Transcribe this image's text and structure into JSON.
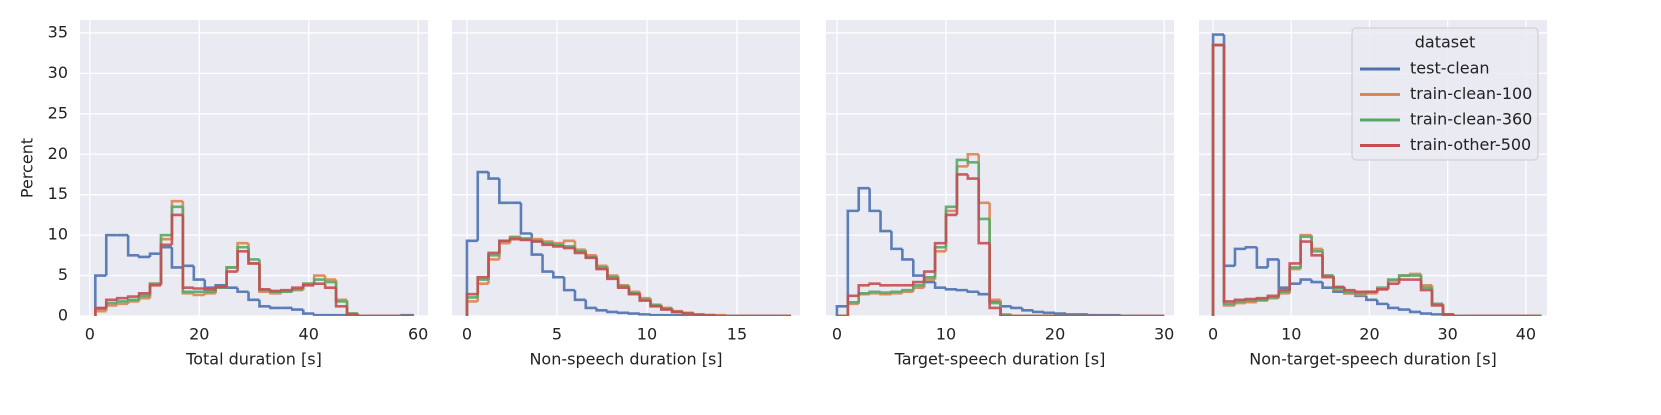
{
  "chart_data": [
    {
      "type": "histogram",
      "xlabel": "Total duration [s]",
      "ylabel": "Percent",
      "bins": [
        1,
        3,
        5,
        7,
        9,
        11,
        13,
        15,
        17,
        19,
        21,
        23,
        25,
        27,
        29,
        31,
        33,
        35,
        37,
        39,
        41,
        43,
        45,
        47,
        49,
        51,
        53,
        55,
        57,
        59
      ],
      "xlim": [
        -1.8,
        61.8
      ],
      "xticks": [
        0,
        20,
        40,
        60
      ],
      "ylim": [
        0,
        36.6
      ],
      "yticks": [
        0,
        5,
        10,
        15,
        20,
        25,
        30,
        35
      ],
      "show_ytick_labels": true,
      "grid": true,
      "series": [
        {
          "color": "#4c72b0",
          "values": [
            5,
            10,
            10,
            7.5,
            7.3,
            7.7,
            8.5,
            6,
            6.2,
            4.5,
            3.5,
            3.8,
            3.5,
            3,
            2,
            1.2,
            1,
            1,
            0.8,
            0.3,
            0.1,
            0.1,
            0.1,
            0,
            0,
            0,
            0,
            0,
            0.1
          ]
        },
        {
          "color": "#dd8452",
          "values": [
            0.6,
            1.3,
            1.5,
            1.8,
            2.2,
            4,
            9.5,
            14.2,
            2.8,
            2.6,
            2.8,
            3.5,
            6,
            9,
            6.5,
            3,
            2.8,
            3,
            3.2,
            4,
            5,
            4.5,
            2,
            0.3,
            0,
            0,
            0,
            0,
            0
          ]
        },
        {
          "color": "#55a868",
          "values": [
            0.9,
            1.6,
            1.8,
            2,
            2.5,
            4,
            10,
            13.5,
            3,
            3,
            3,
            3.5,
            6,
            8.5,
            7,
            3.2,
            3,
            3,
            3.3,
            4,
            4.5,
            4.2,
            1.8,
            0.3,
            0,
            0,
            0,
            0,
            0
          ]
        },
        {
          "color": "#c44e52",
          "values": [
            1,
            2,
            2.2,
            2.4,
            2.8,
            3.8,
            8.8,
            12.5,
            3.5,
            3.4,
            3.3,
            3.6,
            5.5,
            8,
            6.5,
            3.3,
            3.1,
            3.2,
            3.5,
            3.8,
            4,
            3.5,
            1.2,
            0.2,
            0,
            0,
            0,
            0,
            0
          ]
        }
      ]
    },
    {
      "type": "histogram",
      "xlabel": "Non-speech duration [s]",
      "bins": [
        0,
        0.6,
        1.2,
        1.8,
        2.4,
        3,
        3.6,
        4.2,
        4.8,
        5.4,
        6,
        6.6,
        7.2,
        7.8,
        8.4,
        9,
        9.6,
        10.2,
        10.8,
        11.4,
        12,
        12.6,
        13.2,
        13.8,
        14.4,
        15,
        15.6,
        16.2,
        16.8,
        17.4,
        18
      ],
      "xlim": [
        -0.83,
        18.5
      ],
      "xticks": [
        0,
        5,
        10,
        15
      ],
      "ylim": [
        0,
        36.6
      ],
      "yticks": [
        0,
        5,
        10,
        15,
        20,
        25,
        30,
        35
      ],
      "show_ytick_labels": false,
      "grid": true,
      "series": [
        {
          "color": "#4c72b0",
          "values": [
            9.3,
            17.8,
            17,
            14,
            14,
            10.2,
            7.6,
            5.5,
            4.8,
            3.2,
            2,
            1,
            0.7,
            0.5,
            0.4,
            0.3,
            0.2,
            0.1,
            0.1,
            0.1,
            0,
            0,
            0,
            0,
            0,
            0,
            0,
            0,
            0,
            0
          ]
        },
        {
          "color": "#dd8452",
          "values": [
            1.8,
            4,
            7,
            9,
            9.8,
            9.6,
            9.5,
            9.2,
            9,
            9.3,
            8.2,
            7.5,
            6.2,
            5,
            3.8,
            3,
            2.2,
            1.4,
            1,
            0.6,
            0.4,
            0.2,
            0.1,
            0.1,
            0,
            0,
            0,
            0,
            0,
            0
          ]
        },
        {
          "color": "#55a868",
          "values": [
            2.3,
            4.5,
            7.5,
            9.3,
            9.7,
            9.5,
            9.3,
            9,
            8.8,
            8.6,
            8,
            7.3,
            6,
            4.8,
            3.7,
            2.8,
            2,
            1.3,
            0.9,
            0.5,
            0.3,
            0.2,
            0.1,
            0,
            0,
            0,
            0,
            0,
            0,
            0
          ]
        },
        {
          "color": "#c44e52",
          "values": [
            2.7,
            4.8,
            7.8,
            9.3,
            9.5,
            9.4,
            9.2,
            8.8,
            8.6,
            8.4,
            7.8,
            7.2,
            5.8,
            4.6,
            3.5,
            2.7,
            1.9,
            1.2,
            0.8,
            0.5,
            0.3,
            0.1,
            0.1,
            0,
            0,
            0,
            0,
            0,
            0,
            0
          ]
        }
      ]
    },
    {
      "type": "histogram",
      "xlabel": "Target-speech duration [s]",
      "bins": [
        0,
        1,
        2,
        3,
        4,
        5,
        6,
        7,
        8,
        9,
        10,
        11,
        12,
        13,
        14,
        15,
        16,
        17,
        18,
        19,
        20,
        21,
        22,
        23,
        24,
        25,
        26,
        27,
        28,
        29,
        30
      ],
      "xlim": [
        -1.0,
        30.9
      ],
      "xticks": [
        0,
        10,
        20,
        30
      ],
      "ylim": [
        0,
        36.6
      ],
      "yticks": [
        0,
        5,
        10,
        15,
        20,
        25,
        30,
        35
      ],
      "show_ytick_labels": false,
      "grid": true,
      "series": [
        {
          "color": "#4c72b0",
          "values": [
            1.2,
            13,
            15.8,
            13,
            10.5,
            8.3,
            7,
            5,
            4.2,
            3.5,
            3.3,
            3.2,
            3,
            2.7,
            1.8,
            1.2,
            1,
            0.7,
            0.5,
            0.4,
            0.3,
            0.2,
            0.2,
            0.1,
            0.1,
            0.1,
            0,
            0,
            0,
            0
          ]
        },
        {
          "color": "#dd8452",
          "values": [
            0,
            1.5,
            2.7,
            2.8,
            2.7,
            2.8,
            3,
            3.5,
            4.5,
            8,
            13,
            18.5,
            20,
            14,
            2,
            0.2,
            0,
            0,
            0,
            0,
            0,
            0,
            0,
            0,
            0,
            0,
            0,
            0,
            0,
            0
          ]
        },
        {
          "color": "#55a868",
          "values": [
            0,
            1.7,
            2.8,
            3,
            2.9,
            3,
            3.2,
            3.8,
            4.8,
            8.5,
            13.5,
            19.3,
            19,
            12,
            1.6,
            0.1,
            0,
            0,
            0,
            0,
            0,
            0,
            0,
            0,
            0,
            0,
            0,
            0,
            0,
            0
          ]
        },
        {
          "color": "#c44e52",
          "values": [
            0,
            2.5,
            3.8,
            4,
            3.8,
            3.8,
            3.8,
            4.2,
            5.5,
            9,
            12.5,
            17.5,
            17,
            9,
            1,
            0,
            0,
            0,
            0,
            0,
            0,
            0,
            0,
            0,
            0,
            0,
            0,
            0,
            0,
            0
          ]
        }
      ]
    },
    {
      "type": "histogram",
      "xlabel": "Non-target-speech duration [s]",
      "bins": [
        0,
        1.4,
        2.8,
        4.2,
        5.6,
        7,
        8.4,
        9.8,
        11.2,
        12.6,
        14,
        15.4,
        16.8,
        18.2,
        19.6,
        21,
        22.4,
        23.8,
        25.2,
        26.6,
        28,
        29.4,
        30.8,
        32.2,
        33.6,
        35,
        36.4,
        37.8,
        39.2,
        40.6,
        42
      ],
      "xlim": [
        -1.8,
        42.7
      ],
      "xticks": [
        0,
        10,
        20,
        30,
        40
      ],
      "ylim": [
        0,
        36.6
      ],
      "yticks": [
        0,
        5,
        10,
        15,
        20,
        25,
        30,
        35
      ],
      "show_ytick_labels": false,
      "grid": true,
      "legend": "upper right",
      "legend_title": "dataset",
      "series": [
        {
          "name": "test-clean",
          "color": "#4c72b0",
          "values": [
            34.8,
            6.2,
            8.3,
            8.5,
            6,
            7,
            3.5,
            4,
            4.5,
            4.2,
            3.5,
            3,
            2.8,
            2.5,
            2,
            1.5,
            1,
            0.8,
            0.5,
            0.3,
            0.2,
            0.1,
            0,
            0,
            0,
            0,
            0,
            0,
            0,
            0
          ]
        },
        {
          "name": "train-clean-100",
          "color": "#dd8452",
          "values": [
            33.5,
            1.3,
            1.6,
            1.7,
            1.9,
            2.2,
            2.8,
            5.8,
            10,
            8.3,
            5,
            3.3,
            2.8,
            2.6,
            2.8,
            3.3,
            4.4,
            5,
            5.2,
            3.8,
            1.5,
            0.2,
            0,
            0,
            0,
            0,
            0,
            0,
            0,
            0
          ]
        },
        {
          "name": "train-clean-360",
          "color": "#55a868",
          "values": [
            33.5,
            1.5,
            1.8,
            1.9,
            2,
            2.3,
            3,
            6,
            9.8,
            8,
            5,
            3.5,
            3,
            2.8,
            3,
            3.5,
            4.5,
            5,
            5,
            3.5,
            1.5,
            0.2,
            0,
            0,
            0,
            0,
            0,
            0,
            0,
            0
          ]
        },
        {
          "name": "train-other-500",
          "color": "#c44e52",
          "values": [
            33.5,
            1.8,
            2,
            2.1,
            2.2,
            2.5,
            3.2,
            6.5,
            9.2,
            7.5,
            4.8,
            3.6,
            3.2,
            3,
            3,
            3.3,
            4,
            4.5,
            4.5,
            3.2,
            1.3,
            0.2,
            0,
            0,
            0,
            0,
            0,
            0,
            0,
            0
          ]
        }
      ]
    }
  ]
}
